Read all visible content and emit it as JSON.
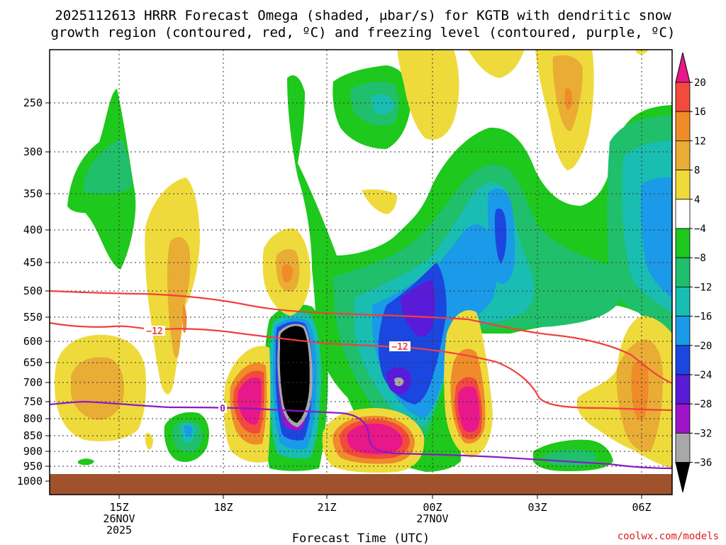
{
  "chart_data": {
    "type": "contour",
    "title_lines": [
      "2025112613 HRRR Forecast Omega (shaded, μbar/s) for KGTB with dendritic snow",
      "growth region (contoured, red, ºC) and freezing level (contoured, purple, ºC)"
    ],
    "xlabel": "Forecast Time (UTC)",
    "credit": "coolwx.com/models",
    "y_ticks": [
      "250",
      "300",
      "350",
      "400",
      "450",
      "500",
      "550",
      "600",
      "650",
      "700",
      "750",
      "800",
      "850",
      "900",
      "950",
      "1000"
    ],
    "x_ticks": [
      {
        "label": "15Z",
        "sub": [
          "26NOV",
          "2025"
        ]
      },
      {
        "label": "18Z",
        "sub": []
      },
      {
        "label": "21Z",
        "sub": []
      },
      {
        "label": "00Z",
        "sub": [
          "27NOV"
        ]
      },
      {
        "label": "03Z",
        "sub": []
      },
      {
        "label": "06Z",
        "sub": []
      }
    ],
    "colorbar_ticks": [
      "20",
      "16",
      "12",
      "8",
      "4",
      "−4",
      "−8",
      "−12",
      "−16",
      "−20",
      "−24",
      "−28",
      "−32",
      "−36"
    ],
    "contour_labels": {
      "dgz_lower": "−12",
      "dgz_upper": "−12",
      "freezing": "0"
    },
    "colors": {
      "c20": "#e8178a",
      "c16": "#f24a3d",
      "c12": "#f08b2a",
      "c8": "#e9ac35",
      "c4": "#eedb3b",
      "white": "#ffffff",
      "n4": "#1ec81c",
      "n8": "#20bf6b",
      "n12": "#19bdb1",
      "n16": "#1a9ae8",
      "n20": "#1c46e0",
      "n24": "#5a1bd8",
      "n28": "#9b14c8",
      "n32": "#a8a8a8",
      "n36": "#000000",
      "ground": "#a0522d",
      "dgz": "#f04040",
      "freeze": "#8a1ac8"
    }
  }
}
